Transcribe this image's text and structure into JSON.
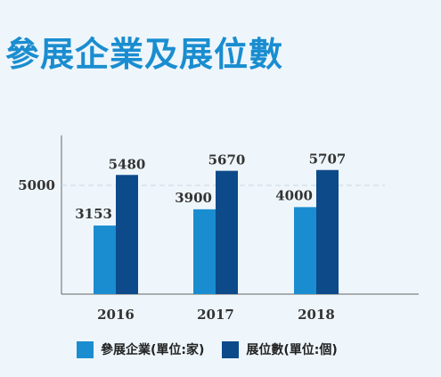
{
  "title": "參展企業及展位數",
  "chart_data": {
    "type": "bar",
    "categories": [
      "2016",
      "2017",
      "2018"
    ],
    "series": [
      {
        "name": "參展企業(單位:家)",
        "values": [
          3153,
          3900,
          4000
        ],
        "color": "#1a8dd0"
      },
      {
        "name": "展位數(單位:個)",
        "values": [
          5480,
          5670,
          5707
        ],
        "color": "#0d4a8a"
      }
    ],
    "yticks": [
      5000
    ],
    "ylim": [
      0,
      7300
    ],
    "reference_line": 5000,
    "grid": false,
    "legend_position": "bottom"
  }
}
